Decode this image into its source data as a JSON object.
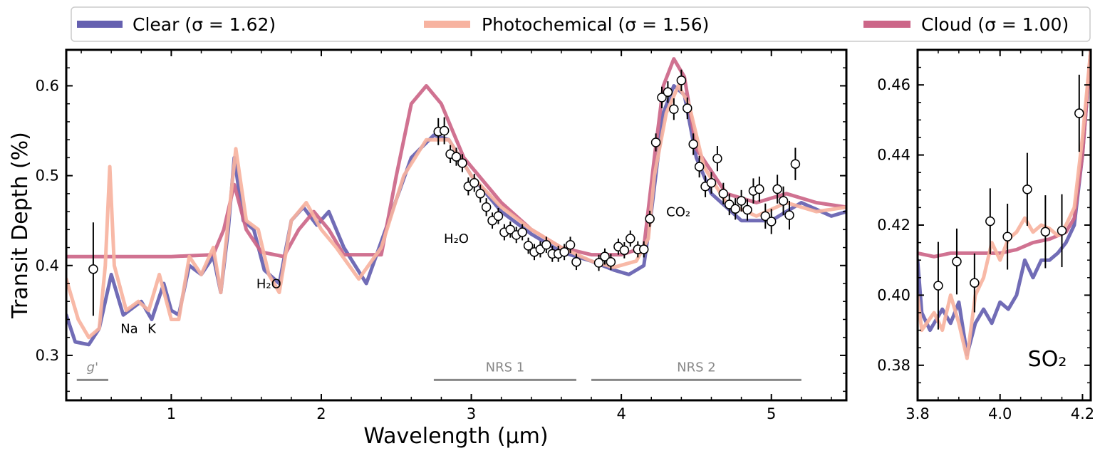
{
  "chart_data": {
    "type": "line",
    "xlabel": "Wavelength (μm)",
    "ylabel": "Transit Depth (%)",
    "legend": {
      "placement": "top",
      "entries": [
        {
          "name": "Clear",
          "label": "Clear (σ = 1.62)",
          "color": "#6560b0"
        },
        {
          "name": "Photochemical",
          "label": "Photochemical (σ = 1.56)",
          "color": "#f7b3a0"
        },
        {
          "name": "Cloud",
          "label": "Cloud (σ = 1.00)",
          "color": "#cc6688"
        }
      ]
    },
    "main": {
      "xlim": [
        0.3,
        5.5
      ],
      "ylim": [
        0.25,
        0.64
      ],
      "xticks": [
        1,
        2,
        3,
        4,
        5
      ],
      "yticks": [
        0.3,
        0.4,
        0.5,
        0.6
      ],
      "ytick_labels": [
        "0.3",
        "0.4",
        "0.5",
        "0.6"
      ],
      "annotations": [
        {
          "text": "Na",
          "x": 0.72,
          "y": 0.325
        },
        {
          "text": "K",
          "x": 0.87,
          "y": 0.325
        },
        {
          "text": "H₂O",
          "x": 1.65,
          "y": 0.375
        },
        {
          "text": "H₂O",
          "x": 2.9,
          "y": 0.425
        },
        {
          "text": "CO₂",
          "x": 4.38,
          "y": 0.455
        }
      ],
      "instruments": [
        {
          "label": "g'",
          "x0": 0.37,
          "x1": 0.58
        },
        {
          "label": "NRS 1",
          "x0": 2.75,
          "x1": 3.7
        },
        {
          "label": "NRS 2",
          "x0": 3.8,
          "x1": 5.2
        }
      ],
      "models": {
        "clear": [
          [
            0.3,
            0.345
          ],
          [
            0.36,
            0.315
          ],
          [
            0.45,
            0.312
          ],
          [
            0.52,
            0.33
          ],
          [
            0.6,
            0.39
          ],
          [
            0.68,
            0.345
          ],
          [
            0.76,
            0.355
          ],
          [
            0.8,
            0.36
          ],
          [
            0.87,
            0.34
          ],
          [
            0.95,
            0.38
          ],
          [
            1.0,
            0.35
          ],
          [
            1.05,
            0.345
          ],
          [
            1.12,
            0.4
          ],
          [
            1.2,
            0.39
          ],
          [
            1.28,
            0.41
          ],
          [
            1.33,
            0.37
          ],
          [
            1.38,
            0.44
          ],
          [
            1.42,
            0.52
          ],
          [
            1.48,
            0.45
          ],
          [
            1.55,
            0.44
          ],
          [
            1.62,
            0.395
          ],
          [
            1.72,
            0.38
          ],
          [
            1.8,
            0.45
          ],
          [
            1.88,
            0.465
          ],
          [
            1.97,
            0.445
          ],
          [
            2.05,
            0.46
          ],
          [
            2.15,
            0.42
          ],
          [
            2.3,
            0.38
          ],
          [
            2.45,
            0.45
          ],
          [
            2.6,
            0.52
          ],
          [
            2.75,
            0.545
          ],
          [
            2.85,
            0.54
          ],
          [
            3.0,
            0.5
          ],
          [
            3.2,
            0.46
          ],
          [
            3.4,
            0.435
          ],
          [
            3.6,
            0.415
          ],
          [
            3.8,
            0.405
          ],
          [
            3.95,
            0.395
          ],
          [
            4.05,
            0.39
          ],
          [
            4.15,
            0.4
          ],
          [
            4.2,
            0.46
          ],
          [
            4.28,
            0.57
          ],
          [
            4.35,
            0.6
          ],
          [
            4.42,
            0.59
          ],
          [
            4.5,
            0.52
          ],
          [
            4.6,
            0.48
          ],
          [
            4.8,
            0.45
          ],
          [
            5.0,
            0.45
          ],
          [
            5.2,
            0.47
          ],
          [
            5.4,
            0.455
          ],
          [
            5.5,
            0.46
          ]
        ],
        "photochemical": [
          [
            0.3,
            0.385
          ],
          [
            0.38,
            0.34
          ],
          [
            0.45,
            0.32
          ],
          [
            0.52,
            0.33
          ],
          [
            0.56,
            0.4
          ],
          [
            0.59,
            0.51
          ],
          [
            0.62,
            0.4
          ],
          [
            0.7,
            0.35
          ],
          [
            0.78,
            0.36
          ],
          [
            0.85,
            0.35
          ],
          [
            0.92,
            0.39
          ],
          [
            1.0,
            0.34
          ],
          [
            1.05,
            0.34
          ],
          [
            1.12,
            0.41
          ],
          [
            1.2,
            0.39
          ],
          [
            1.28,
            0.42
          ],
          [
            1.33,
            0.37
          ],
          [
            1.38,
            0.45
          ],
          [
            1.43,
            0.53
          ],
          [
            1.5,
            0.45
          ],
          [
            1.58,
            0.44
          ],
          [
            1.65,
            0.39
          ],
          [
            1.72,
            0.37
          ],
          [
            1.8,
            0.45
          ],
          [
            1.9,
            0.47
          ],
          [
            2.0,
            0.44
          ],
          [
            2.1,
            0.42
          ],
          [
            2.25,
            0.385
          ],
          [
            2.4,
            0.42
          ],
          [
            2.55,
            0.5
          ],
          [
            2.7,
            0.54
          ],
          [
            2.85,
            0.54
          ],
          [
            3.0,
            0.5
          ],
          [
            3.2,
            0.465
          ],
          [
            3.4,
            0.44
          ],
          [
            3.6,
            0.42
          ],
          [
            3.8,
            0.405
          ],
          [
            3.95,
            0.398
          ],
          [
            4.1,
            0.405
          ],
          [
            4.18,
            0.43
          ],
          [
            4.22,
            0.5
          ],
          [
            4.3,
            0.57
          ],
          [
            4.38,
            0.6
          ],
          [
            4.45,
            0.58
          ],
          [
            4.55,
            0.51
          ],
          [
            4.7,
            0.47
          ],
          [
            4.9,
            0.455
          ],
          [
            5.1,
            0.47
          ],
          [
            5.3,
            0.46
          ],
          [
            5.5,
            0.465
          ]
        ],
        "cloud": [
          [
            0.3,
            0.41
          ],
          [
            1.0,
            0.41
          ],
          [
            1.28,
            0.412
          ],
          [
            1.35,
            0.44
          ],
          [
            1.42,
            0.49
          ],
          [
            1.5,
            0.44
          ],
          [
            1.6,
            0.415
          ],
          [
            1.75,
            0.41
          ],
          [
            1.85,
            0.44
          ],
          [
            1.95,
            0.46
          ],
          [
            2.05,
            0.44
          ],
          [
            2.15,
            0.412
          ],
          [
            2.4,
            0.412
          ],
          [
            2.5,
            0.5
          ],
          [
            2.6,
            0.58
          ],
          [
            2.7,
            0.6
          ],
          [
            2.8,
            0.58
          ],
          [
            2.95,
            0.52
          ],
          [
            3.2,
            0.47
          ],
          [
            3.4,
            0.44
          ],
          [
            3.6,
            0.42
          ],
          [
            3.8,
            0.412
          ],
          [
            4.0,
            0.412
          ],
          [
            4.15,
            0.42
          ],
          [
            4.22,
            0.52
          ],
          [
            4.28,
            0.6
          ],
          [
            4.35,
            0.63
          ],
          [
            4.42,
            0.61
          ],
          [
            4.5,
            0.53
          ],
          [
            4.7,
            0.48
          ],
          [
            4.9,
            0.47
          ],
          [
            5.1,
            0.48
          ],
          [
            5.3,
            0.47
          ],
          [
            5.5,
            0.465
          ]
        ]
      },
      "observations": [
        {
          "x": 0.48,
          "y": 0.396,
          "err": 0.052
        },
        {
          "x": 2.78,
          "y": 0.549,
          "err": 0.015
        },
        {
          "x": 2.82,
          "y": 0.55,
          "err": 0.015
        },
        {
          "x": 2.86,
          "y": 0.524,
          "err": 0.01
        },
        {
          "x": 2.9,
          "y": 0.521,
          "err": 0.01
        },
        {
          "x": 2.94,
          "y": 0.514,
          "err": 0.01
        },
        {
          "x": 2.98,
          "y": 0.488,
          "err": 0.01
        },
        {
          "x": 3.02,
          "y": 0.492,
          "err": 0.01
        },
        {
          "x": 3.06,
          "y": 0.48,
          "err": 0.01
        },
        {
          "x": 3.1,
          "y": 0.465,
          "err": 0.01
        },
        {
          "x": 3.14,
          "y": 0.45,
          "err": 0.009
        },
        {
          "x": 3.18,
          "y": 0.455,
          "err": 0.009
        },
        {
          "x": 3.22,
          "y": 0.437,
          "err": 0.009
        },
        {
          "x": 3.26,
          "y": 0.44,
          "err": 0.009
        },
        {
          "x": 3.3,
          "y": 0.434,
          "err": 0.009
        },
        {
          "x": 3.34,
          "y": 0.437,
          "err": 0.009
        },
        {
          "x": 3.38,
          "y": 0.422,
          "err": 0.009
        },
        {
          "x": 3.42,
          "y": 0.415,
          "err": 0.009
        },
        {
          "x": 3.46,
          "y": 0.418,
          "err": 0.009
        },
        {
          "x": 3.5,
          "y": 0.423,
          "err": 0.009
        },
        {
          "x": 3.54,
          "y": 0.413,
          "err": 0.009
        },
        {
          "x": 3.58,
          "y": 0.413,
          "err": 0.009
        },
        {
          "x": 3.62,
          "y": 0.415,
          "err": 0.009
        },
        {
          "x": 3.66,
          "y": 0.423,
          "err": 0.009
        },
        {
          "x": 3.7,
          "y": 0.404,
          "err": 0.009
        },
        {
          "x": 3.85,
          "y": 0.403,
          "err": 0.009
        },
        {
          "x": 3.89,
          "y": 0.41,
          "err": 0.009
        },
        {
          "x": 3.93,
          "y": 0.404,
          "err": 0.009
        },
        {
          "x": 3.98,
          "y": 0.421,
          "err": 0.009
        },
        {
          "x": 4.02,
          "y": 0.417,
          "err": 0.009
        },
        {
          "x": 4.06,
          "y": 0.43,
          "err": 0.009
        },
        {
          "x": 4.11,
          "y": 0.418,
          "err": 0.009
        },
        {
          "x": 4.15,
          "y": 0.418,
          "err": 0.009
        },
        {
          "x": 4.19,
          "y": 0.452,
          "err": 0.009
        },
        {
          "x": 4.23,
          "y": 0.537,
          "err": 0.01
        },
        {
          "x": 4.27,
          "y": 0.587,
          "err": 0.012
        },
        {
          "x": 4.31,
          "y": 0.593,
          "err": 0.012
        },
        {
          "x": 4.35,
          "y": 0.574,
          "err": 0.012
        },
        {
          "x": 4.4,
          "y": 0.606,
          "err": 0.012
        },
        {
          "x": 4.44,
          "y": 0.575,
          "err": 0.012
        },
        {
          "x": 4.48,
          "y": 0.535,
          "err": 0.012
        },
        {
          "x": 4.52,
          "y": 0.51,
          "err": 0.012
        },
        {
          "x": 4.56,
          "y": 0.488,
          "err": 0.012
        },
        {
          "x": 4.6,
          "y": 0.492,
          "err": 0.012
        },
        {
          "x": 4.64,
          "y": 0.519,
          "err": 0.014
        },
        {
          "x": 4.68,
          "y": 0.48,
          "err": 0.012
        },
        {
          "x": 4.72,
          "y": 0.468,
          "err": 0.012
        },
        {
          "x": 4.76,
          "y": 0.463,
          "err": 0.012
        },
        {
          "x": 4.8,
          "y": 0.472,
          "err": 0.012
        },
        {
          "x": 4.84,
          "y": 0.462,
          "err": 0.012
        },
        {
          "x": 4.88,
          "y": 0.483,
          "err": 0.014
        },
        {
          "x": 4.92,
          "y": 0.485,
          "err": 0.014
        },
        {
          "x": 4.96,
          "y": 0.455,
          "err": 0.014
        },
        {
          "x": 5.0,
          "y": 0.449,
          "err": 0.014
        },
        {
          "x": 5.04,
          "y": 0.485,
          "err": 0.016
        },
        {
          "x": 5.08,
          "y": 0.472,
          "err": 0.016
        },
        {
          "x": 5.12,
          "y": 0.456,
          "err": 0.016
        },
        {
          "x": 5.16,
          "y": 0.513,
          "err": 0.018
        }
      ]
    },
    "inset": {
      "xlim": [
        3.8,
        4.22
      ],
      "ylim": [
        0.37,
        0.47
      ],
      "xticks": [
        3.8,
        4.0,
        4.2
      ],
      "xtick_labels": [
        "3.8",
        "4.0",
        "4.2"
      ],
      "yticks": [
        0.38,
        0.4,
        0.42,
        0.44,
        0.46
      ],
      "ytick_labels": [
        "0.38",
        "0.40",
        "0.42",
        "0.44",
        "0.46"
      ],
      "label": "SO₂",
      "models": {
        "clear": [
          [
            3.8,
            0.41
          ],
          [
            3.81,
            0.395
          ],
          [
            3.83,
            0.39
          ],
          [
            3.86,
            0.396
          ],
          [
            3.88,
            0.392
          ],
          [
            3.9,
            0.398
          ],
          [
            3.92,
            0.383
          ],
          [
            3.94,
            0.392
          ],
          [
            3.96,
            0.396
          ],
          [
            3.98,
            0.392
          ],
          [
            4.0,
            0.398
          ],
          [
            4.02,
            0.396
          ],
          [
            4.04,
            0.4
          ],
          [
            4.06,
            0.41
          ],
          [
            4.08,
            0.405
          ],
          [
            4.1,
            0.41
          ],
          [
            4.12,
            0.41
          ],
          [
            4.14,
            0.412
          ],
          [
            4.16,
            0.415
          ],
          [
            4.18,
            0.42
          ],
          [
            4.2,
            0.44
          ],
          [
            4.22,
            0.47
          ]
        ],
        "photochemical": [
          [
            3.8,
            0.4
          ],
          [
            3.81,
            0.39
          ],
          [
            3.84,
            0.395
          ],
          [
            3.86,
            0.39
          ],
          [
            3.88,
            0.4
          ],
          [
            3.9,
            0.392
          ],
          [
            3.92,
            0.382
          ],
          [
            3.94,
            0.4
          ],
          [
            3.96,
            0.405
          ],
          [
            3.98,
            0.415
          ],
          [
            4.0,
            0.41
          ],
          [
            4.02,
            0.416
          ],
          [
            4.04,
            0.418
          ],
          [
            4.06,
            0.422
          ],
          [
            4.08,
            0.418
          ],
          [
            4.1,
            0.42
          ],
          [
            4.12,
            0.419
          ],
          [
            4.14,
            0.417
          ],
          [
            4.16,
            0.42
          ],
          [
            4.18,
            0.425
          ],
          [
            4.2,
            0.445
          ],
          [
            4.22,
            0.47
          ]
        ],
        "cloud": [
          [
            3.8,
            0.412
          ],
          [
            3.84,
            0.411
          ],
          [
            3.88,
            0.412
          ],
          [
            3.92,
            0.412
          ],
          [
            3.96,
            0.412
          ],
          [
            4.0,
            0.412
          ],
          [
            4.04,
            0.413
          ],
          [
            4.08,
            0.415
          ],
          [
            4.12,
            0.416
          ],
          [
            4.16,
            0.418
          ],
          [
            4.18,
            0.422
          ],
          [
            4.2,
            0.44
          ],
          [
            4.22,
            0.47
          ]
        ]
      },
      "observations": [
        {
          "x": 3.85,
          "y": 0.4027,
          "err": 0.0125
        },
        {
          "x": 3.895,
          "y": 0.4096,
          "err": 0.0094
        },
        {
          "x": 3.938,
          "y": 0.4035,
          "err": 0.0084
        },
        {
          "x": 3.976,
          "y": 0.4211,
          "err": 0.0094
        },
        {
          "x": 4.018,
          "y": 0.4167,
          "err": 0.0094
        },
        {
          "x": 4.066,
          "y": 0.4302,
          "err": 0.0104
        },
        {
          "x": 4.11,
          "y": 0.4181,
          "err": 0.0104
        },
        {
          "x": 4.15,
          "y": 0.4184,
          "err": 0.0104
        },
        {
          "x": 4.192,
          "y": 0.4519,
          "err": 0.011
        }
      ]
    }
  }
}
